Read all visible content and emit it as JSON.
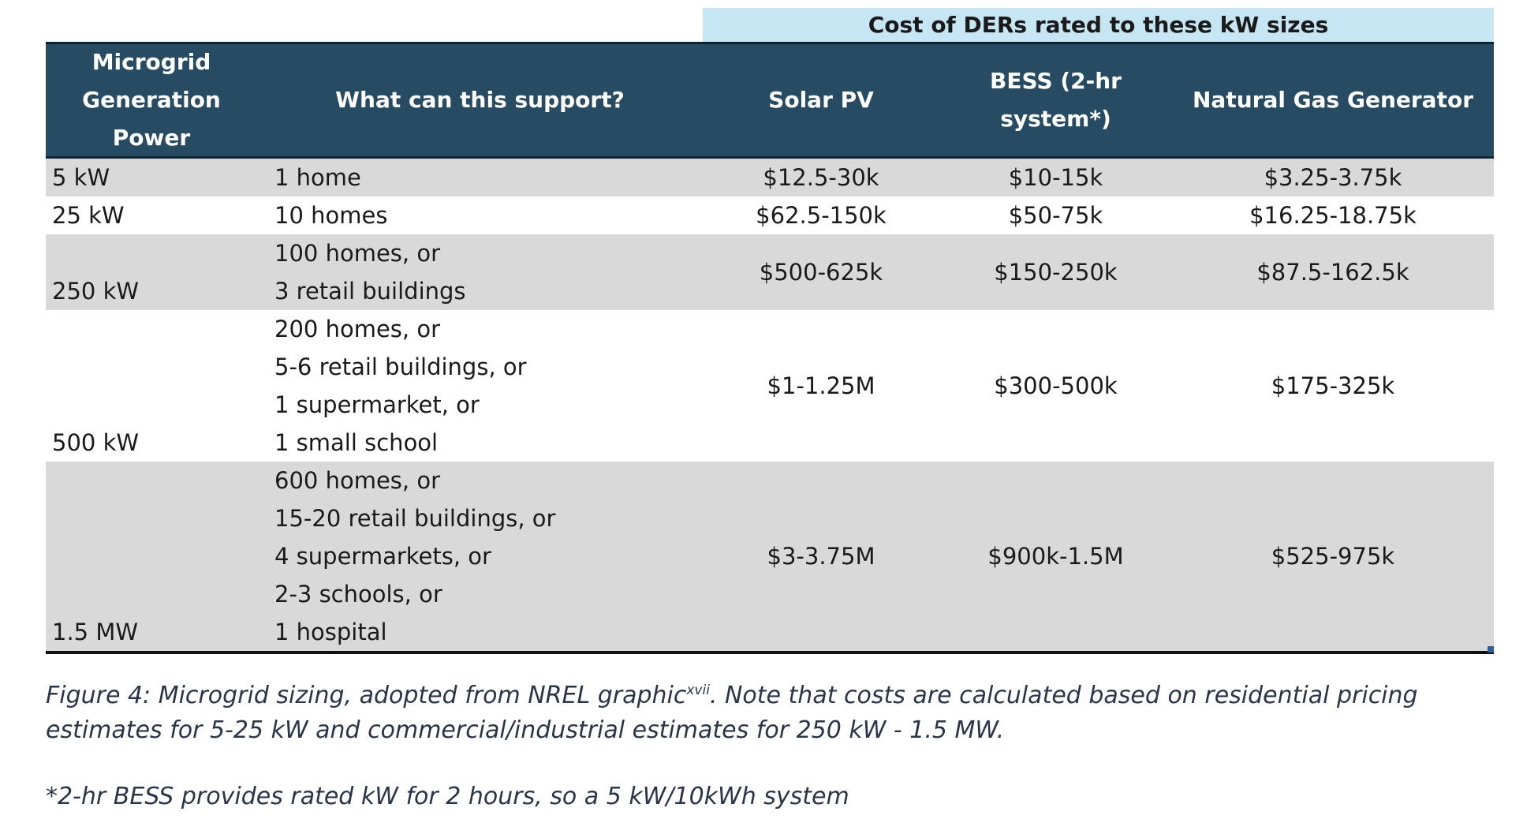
{
  "group_header": "Cost of DERs rated to these kW sizes",
  "headers": {
    "power": [
      "Microgrid",
      "Generation",
      "Power"
    ],
    "support": "What can this support?",
    "solar": "Solar PV",
    "bess": "BESS (2-hr system*)",
    "gas": "Natural Gas Generator"
  },
  "rows": [
    {
      "power": "5 kW",
      "support": [
        "1 home"
      ],
      "solar": "$12.5-30k",
      "bess": "$10-15k",
      "gas": "$3.25-3.75k",
      "shaded": true
    },
    {
      "power": "25 kW",
      "support": [
        "10 homes"
      ],
      "solar": "$62.5-150k",
      "bess": "$50-75k",
      "gas": "$16.25-18.75k",
      "shaded": false
    },
    {
      "power": "250 kW",
      "support": [
        "100 homes, or",
        "3 retail buildings"
      ],
      "solar": "$500-625k",
      "bess": "$150-250k",
      "gas": "$87.5-162.5k",
      "shaded": true
    },
    {
      "power": "500 kW",
      "support": [
        "200 homes, or",
        "5-6 retail buildings, or",
        "1 supermarket, or",
        "1 small school"
      ],
      "solar": "$1-1.25M",
      "bess": "$300-500k",
      "gas": "$175-325k",
      "shaded": false
    },
    {
      "power": "1.5 MW",
      "support": [
        "600 homes, or",
        "15-20 retail buildings, or",
        "4 supermarkets, or",
        "2-3 schools, or",
        "1 hospital"
      ],
      "solar": "$3-3.75M",
      "bess": "$900k-1.5M",
      "gas": "$525-975k",
      "shaded": true
    }
  ],
  "caption": {
    "text1": "Figure 4: Microgrid sizing, adopted from NREL graphic",
    "superscript": "xvii",
    "text2": ". Note that costs are calculated based on residential pricing estimates for 5-25 kW and commercial/industrial estimates for 250 kW - 1.5 MW."
  },
  "footnote": "*2-hr BESS provides rated kW for 2 hours, so a 5 kW/10kWh system"
}
